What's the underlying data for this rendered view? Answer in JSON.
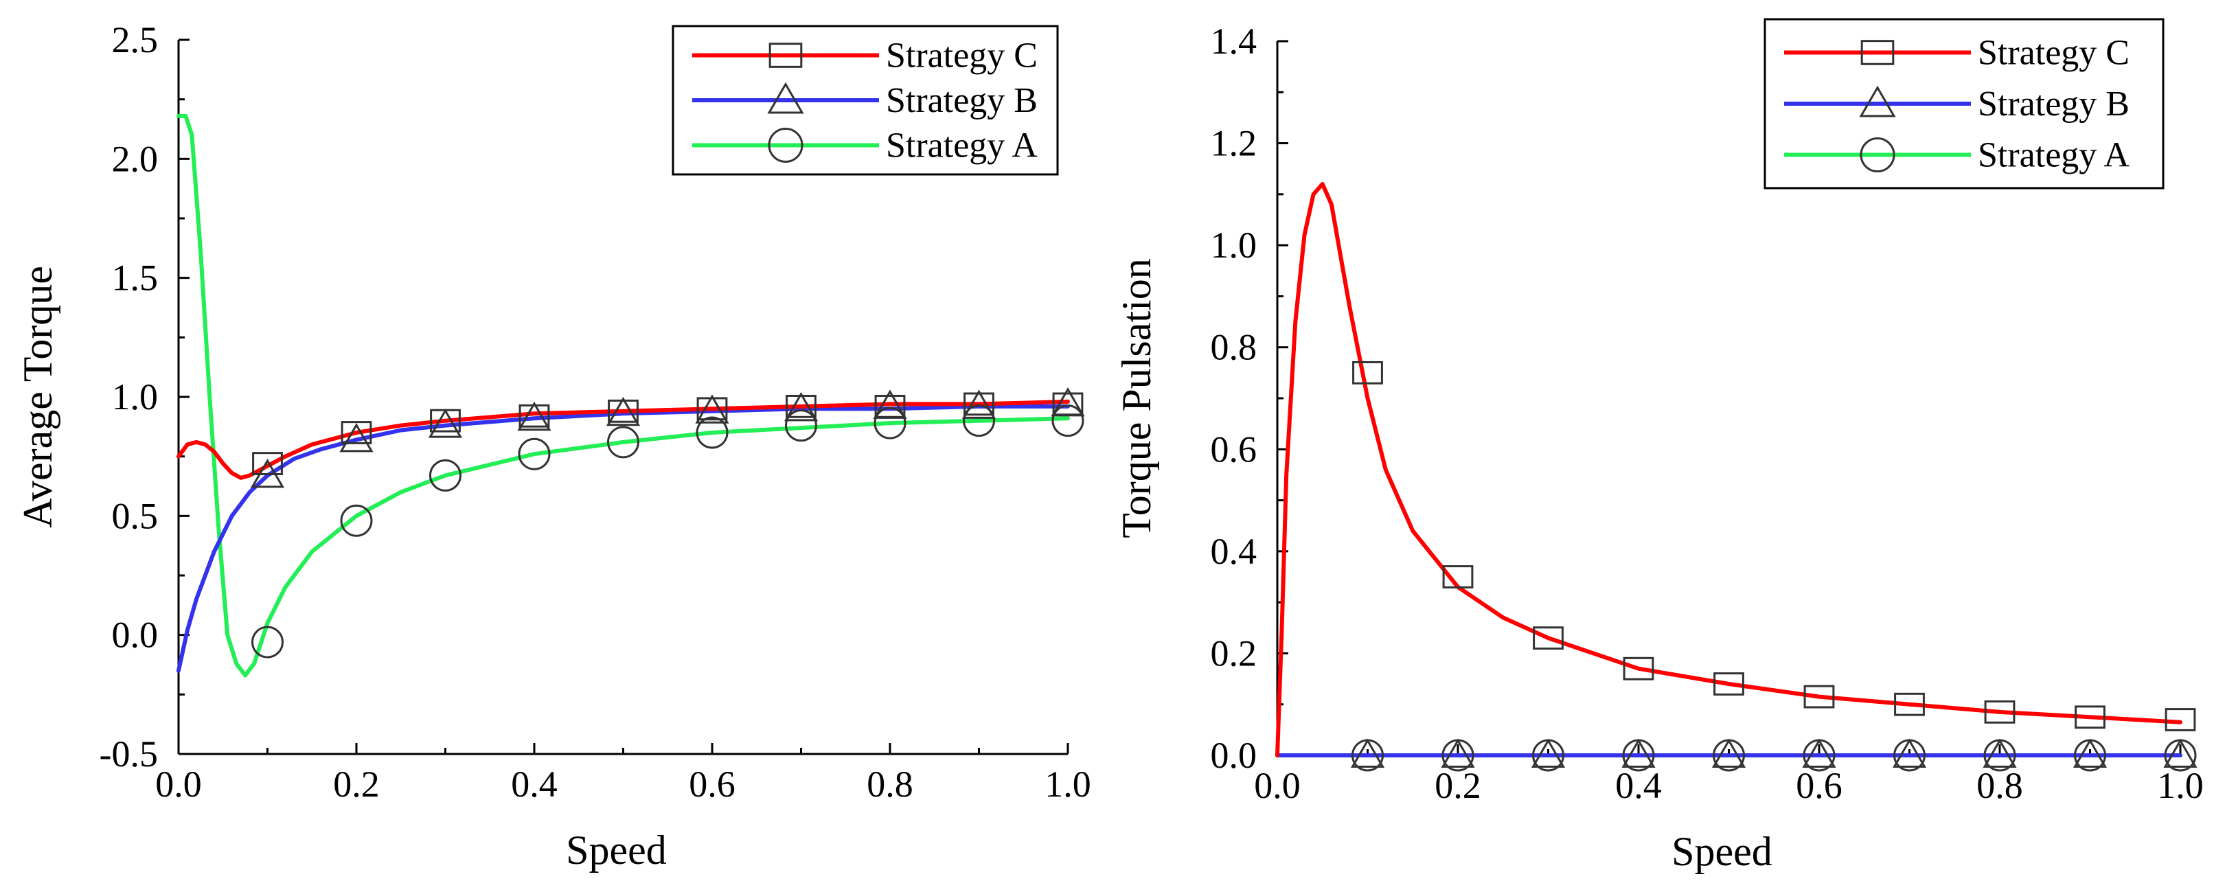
{
  "chart_data": [
    {
      "type": "line",
      "title": "",
      "xlabel": "Speed",
      "ylabel": "Average Torque",
      "xlim": [
        0.0,
        1.0
      ],
      "ylim": [
        -0.5,
        2.5
      ],
      "xticks": [
        "0.0",
        "0.2",
        "0.4",
        "0.6",
        "0.8",
        "1.0"
      ],
      "yticks": [
        "-0.5",
        "0.0",
        "0.5",
        "1.0",
        "1.5",
        "2.0",
        "2.5"
      ],
      "grid": false,
      "legend_position": "top-right",
      "series": [
        {
          "name": "Strategy C",
          "color": "#ff0000",
          "marker": "square",
          "x": [
            0.0,
            0.01,
            0.02,
            0.03,
            0.04,
            0.05,
            0.06,
            0.07,
            0.08,
            0.1,
            0.12,
            0.15,
            0.2,
            0.25,
            0.3,
            0.4,
            0.5,
            0.6,
            0.7,
            0.8,
            0.9,
            1.0
          ],
          "values": [
            0.75,
            0.8,
            0.81,
            0.8,
            0.77,
            0.72,
            0.68,
            0.66,
            0.67,
            0.71,
            0.75,
            0.8,
            0.85,
            0.88,
            0.9,
            0.93,
            0.94,
            0.95,
            0.96,
            0.97,
            0.97,
            0.98
          ],
          "marker_x": [
            0.1,
            0.2,
            0.3,
            0.4,
            0.5,
            0.6,
            0.7,
            0.8,
            0.9,
            1.0
          ],
          "marker_values": [
            0.72,
            0.85,
            0.9,
            0.92,
            0.94,
            0.95,
            0.96,
            0.96,
            0.97,
            0.97
          ]
        },
        {
          "name": "Strategy B",
          "color": "#3333ee",
          "marker": "triangle",
          "x": [
            0.0,
            0.01,
            0.02,
            0.04,
            0.06,
            0.08,
            0.1,
            0.13,
            0.16,
            0.2,
            0.25,
            0.3,
            0.4,
            0.5,
            0.6,
            0.7,
            0.8,
            0.9,
            1.0
          ],
          "values": [
            -0.15,
            0.02,
            0.15,
            0.35,
            0.5,
            0.6,
            0.67,
            0.74,
            0.78,
            0.82,
            0.86,
            0.88,
            0.91,
            0.93,
            0.94,
            0.95,
            0.95,
            0.96,
            0.96
          ],
          "marker_x": [
            0.1,
            0.2,
            0.3,
            0.4,
            0.5,
            0.6,
            0.7,
            0.8,
            0.9,
            1.0
          ],
          "marker_values": [
            0.67,
            0.82,
            0.88,
            0.91,
            0.93,
            0.94,
            0.95,
            0.96,
            0.96,
            0.97
          ]
        },
        {
          "name": "Strategy A",
          "color": "#22ee55",
          "marker": "circle",
          "x": [
            0.0,
            0.008,
            0.015,
            0.025,
            0.035,
            0.045,
            0.055,
            0.065,
            0.075,
            0.085,
            0.1,
            0.12,
            0.15,
            0.2,
            0.25,
            0.3,
            0.4,
            0.5,
            0.6,
            0.7,
            0.8,
            0.9,
            1.0
          ],
          "values": [
            2.18,
            2.18,
            2.1,
            1.6,
            1.0,
            0.45,
            0.0,
            -0.12,
            -0.17,
            -0.12,
            0.05,
            0.2,
            0.35,
            0.5,
            0.6,
            0.67,
            0.76,
            0.81,
            0.85,
            0.87,
            0.89,
            0.9,
            0.91
          ],
          "marker_x": [
            0.1,
            0.2,
            0.3,
            0.4,
            0.5,
            0.6,
            0.7,
            0.8,
            0.9,
            1.0
          ],
          "marker_values": [
            -0.03,
            0.48,
            0.67,
            0.76,
            0.81,
            0.85,
            0.88,
            0.89,
            0.9,
            0.9
          ]
        }
      ]
    },
    {
      "type": "line",
      "title": "",
      "xlabel": "Speed",
      "ylabel": "Torque Pulsation",
      "xlim": [
        0.0,
        1.0
      ],
      "ylim": [
        0.0,
        1.4
      ],
      "xticks": [
        "0.0",
        "0.2",
        "0.4",
        "0.6",
        "0.8",
        "1.0"
      ],
      "yticks": [
        "0.0",
        "0.2",
        "0.4",
        "0.6",
        "0.8",
        "1.0",
        "1.2",
        "1.4"
      ],
      "grid": false,
      "legend_position": "top-right",
      "series": [
        {
          "name": "Strategy C",
          "color": "#ff0000",
          "marker": "square",
          "x": [
            0.0,
            0.005,
            0.01,
            0.02,
            0.03,
            0.04,
            0.05,
            0.06,
            0.07,
            0.08,
            0.1,
            0.12,
            0.15,
            0.2,
            0.25,
            0.3,
            0.4,
            0.5,
            0.6,
            0.7,
            0.8,
            0.9,
            1.0
          ],
          "values": [
            0.0,
            0.25,
            0.55,
            0.85,
            1.02,
            1.1,
            1.12,
            1.08,
            0.98,
            0.88,
            0.7,
            0.56,
            0.44,
            0.33,
            0.27,
            0.23,
            0.17,
            0.14,
            0.115,
            0.1,
            0.085,
            0.075,
            0.065
          ],
          "marker_x": [
            0.1,
            0.2,
            0.3,
            0.4,
            0.5,
            0.6,
            0.7,
            0.8,
            0.9,
            1.0
          ],
          "marker_values": [
            0.75,
            0.35,
            0.23,
            0.17,
            0.14,
            0.115,
            0.1,
            0.085,
            0.075,
            0.07
          ]
        },
        {
          "name": "Strategy B",
          "color": "#3333ee",
          "marker": "triangle",
          "x": [
            0.0,
            1.0
          ],
          "values": [
            0.0,
            0.0
          ],
          "marker_x": [
            0.1,
            0.2,
            0.3,
            0.4,
            0.5,
            0.6,
            0.7,
            0.8,
            0.9,
            1.0
          ],
          "marker_values": [
            0,
            0,
            0,
            0,
            0,
            0,
            0,
            0,
            0,
            0
          ]
        },
        {
          "name": "Strategy A",
          "color": "#22ee55",
          "marker": "circle",
          "x": [
            0.0,
            1.0
          ],
          "values": [
            0.0,
            0.0
          ],
          "marker_x": [
            0.1,
            0.2,
            0.3,
            0.4,
            0.5,
            0.6,
            0.7,
            0.8,
            0.9,
            1.0
          ],
          "marker_values": [
            0,
            0,
            0,
            0,
            0,
            0,
            0,
            0,
            0,
            0
          ]
        }
      ]
    }
  ]
}
